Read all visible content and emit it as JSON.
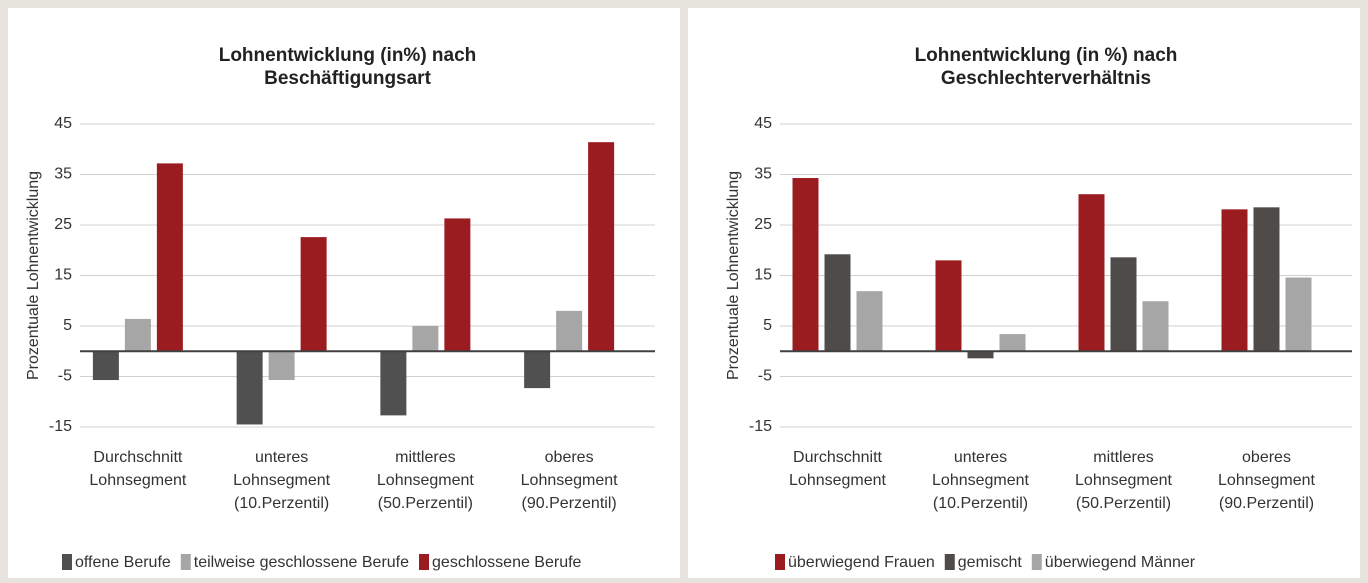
{
  "chart_data": [
    {
      "type": "bar",
      "title": [
        "Lohnentwicklung (in%) nach",
        "Beschäftigungsart"
      ],
      "y_label": "Prozentuale Lohnentwicklung",
      "categories": [
        [
          "Durchschnitt",
          "Lohnsegment"
        ],
        [
          "unteres",
          "Lohnsegment",
          "(10.Perzentil)"
        ],
        [
          "mittleres",
          "Lohnsegment",
          "(50.Perzentil)"
        ],
        [
          "oberes",
          "Lohnsegment",
          "(90.Perzentil)"
        ]
      ],
      "series": [
        {
          "name": "offene Berufe",
          "color": "#505050",
          "values": [
            -5.7,
            -14.5,
            -12.7,
            -7.3
          ]
        },
        {
          "name": "teilweise geschlossene Berufe",
          "color": "#a6a6a6",
          "values": [
            6.4,
            -5.7,
            5,
            8
          ]
        },
        {
          "name": "geschlossene Berufe",
          "color": "#9b1c20",
          "values": [
            37.2,
            22.6,
            26.3,
            41.4
          ]
        }
      ],
      "ylim": [
        -15,
        45
      ],
      "yticks": [
        -15,
        -5,
        5,
        15,
        25,
        35,
        45
      ],
      "grid": true
    },
    {
      "type": "bar",
      "title": [
        "Lohnentwicklung (in %) nach",
        "Geschlechterverhältnis"
      ],
      "y_label": "Prozentuale Lohnentwicklung",
      "categories": [
        [
          "Durchschnitt",
          "Lohnsegment"
        ],
        [
          "unteres",
          "Lohnsegment",
          "(10.Perzentil)"
        ],
        [
          "mittleres",
          "Lohnsegment",
          "(50.Perzentil)"
        ],
        [
          "oberes",
          "Lohnsegment",
          "(90.Perzentil)"
        ]
      ],
      "series": [
        {
          "name": "überwiegend Frauen",
          "color": "#9b1c20",
          "values": [
            34.3,
            18,
            31.1,
            28.1
          ]
        },
        {
          "name": "gemischt",
          "color": "#4f4b49",
          "values": [
            19.2,
            -1.4,
            18.6,
            28.5
          ]
        },
        {
          "name": "überwiegend Männer",
          "color": "#a6a6a6",
          "values": [
            11.9,
            3.4,
            9.9,
            14.6
          ]
        }
      ],
      "ylim": [
        -15,
        45
      ],
      "yticks": [
        -15,
        -5,
        5,
        15,
        25,
        35,
        45
      ],
      "grid": true
    }
  ]
}
